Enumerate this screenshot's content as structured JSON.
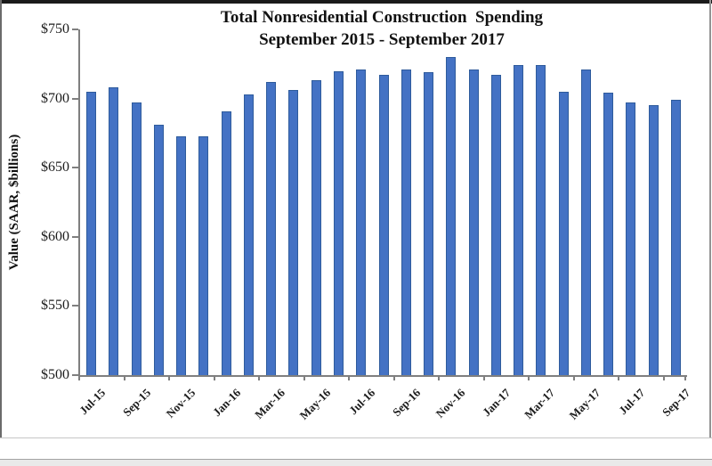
{
  "chart_data": {
    "type": "bar",
    "title": "Total Nonresidential Construction  Spending",
    "subtitle": "September 2015 - September 2017",
    "ylabel": "Value (SAAR, $billions)",
    "xlabel": "",
    "ylim": [
      500,
      750
    ],
    "grid": false,
    "legend": "none",
    "bar_color": "#4472C4",
    "bar_border_color": "#2E5B9C",
    "axis_color": "#7f7f7f",
    "yticks": [
      {
        "value": 750,
        "label": "$750"
      },
      {
        "value": 700,
        "label": "$700"
      },
      {
        "value": 650,
        "label": "$650"
      },
      {
        "value": 600,
        "label": "$600"
      },
      {
        "value": 550,
        "label": "$550"
      },
      {
        "value": 500,
        "label": "$500"
      }
    ],
    "xtick_label_every": 2,
    "categories": [
      "Jul-15",
      "Aug-15",
      "Sep-15",
      "Oct-15",
      "Nov-15",
      "Dec-15",
      "Jan-16",
      "Feb-16",
      "Mar-16",
      "Apr-16",
      "May-16",
      "Jun-16",
      "Jul-16",
      "Aug-16",
      "Sep-16",
      "Oct-16",
      "Nov-16",
      "Dec-16",
      "Jan-17",
      "Feb-17",
      "Mar-17",
      "Apr-17",
      "May-17",
      "Jun-17",
      "Jul-17",
      "Aug-17",
      "Sep-17"
    ],
    "values": [
      705,
      708,
      697,
      681,
      673,
      673,
      691,
      703,
      712,
      706,
      713,
      720,
      721,
      717,
      721,
      719,
      730,
      721,
      717,
      724,
      724,
      705,
      721,
      704,
      697,
      695,
      699
    ]
  }
}
